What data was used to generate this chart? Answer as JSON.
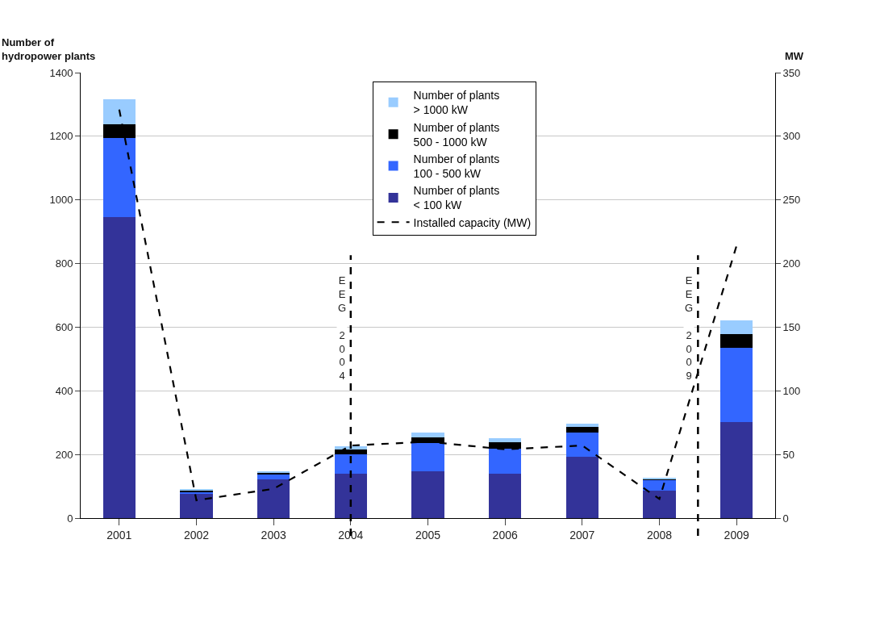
{
  "chart_data": {
    "type": "bar",
    "stacked": true,
    "ylabel": "Number of\nhydropower plants",
    "y2label": "MW",
    "x": [
      2001,
      2002,
      2003,
      2004,
      2005,
      2006,
      2007,
      2008,
      2009
    ],
    "xlim": [
      2000.5,
      2009.5
    ],
    "xticks": [
      2001,
      2002,
      2003,
      2004,
      2005,
      2006,
      2007,
      2008,
      2009
    ],
    "ylim": [
      0,
      1400
    ],
    "yticks": [
      0,
      200,
      400,
      600,
      800,
      1000,
      1200,
      1400
    ],
    "y2lim": [
      0,
      350
    ],
    "y2ticks": [
      0,
      50,
      100,
      150,
      200,
      250,
      300,
      350
    ],
    "series": [
      {
        "name": "Number of plants\n< 100 kW",
        "color": "#333399",
        "values": [
          945,
          78,
          122,
          140,
          146,
          140,
          194,
          85,
          303
        ]
      },
      {
        "name": "Number of plants\n100 - 500 kW",
        "color": "#3366ff",
        "values": [
          249,
          4,
          15,
          61,
          89,
          78,
          74,
          36,
          231
        ]
      },
      {
        "name": "Number of plants\n500 - 1000 kW",
        "color": "#000000",
        "values": [
          43,
          3,
          4,
          15,
          19,
          20,
          18,
          3,
          44
        ]
      },
      {
        "name": "Number of plants\n> 1000 kW",
        "color": "#99ccff",
        "values": [
          79,
          6,
          7,
          11,
          14,
          12,
          12,
          4,
          43
        ]
      },
      {
        "name": "Installed capacity (MW)",
        "type": "line",
        "axis": "y2",
        "color": "#000000",
        "line_style": "dashed",
        "marker": "none",
        "values": [
          321,
          14,
          23,
          57,
          60,
          54,
          57,
          15,
          214
        ]
      }
    ],
    "ref_lines": [
      {
        "axis": "x",
        "value": 2004,
        "label": "EEG 2004",
        "color": "#000000",
        "line_style": "dashed"
      },
      {
        "axis": "x",
        "value": 2008.5,
        "label": "EEG 2009",
        "color": "#000000",
        "line_style": "dashed"
      }
    ],
    "grid": "y",
    "legend": "top"
  }
}
